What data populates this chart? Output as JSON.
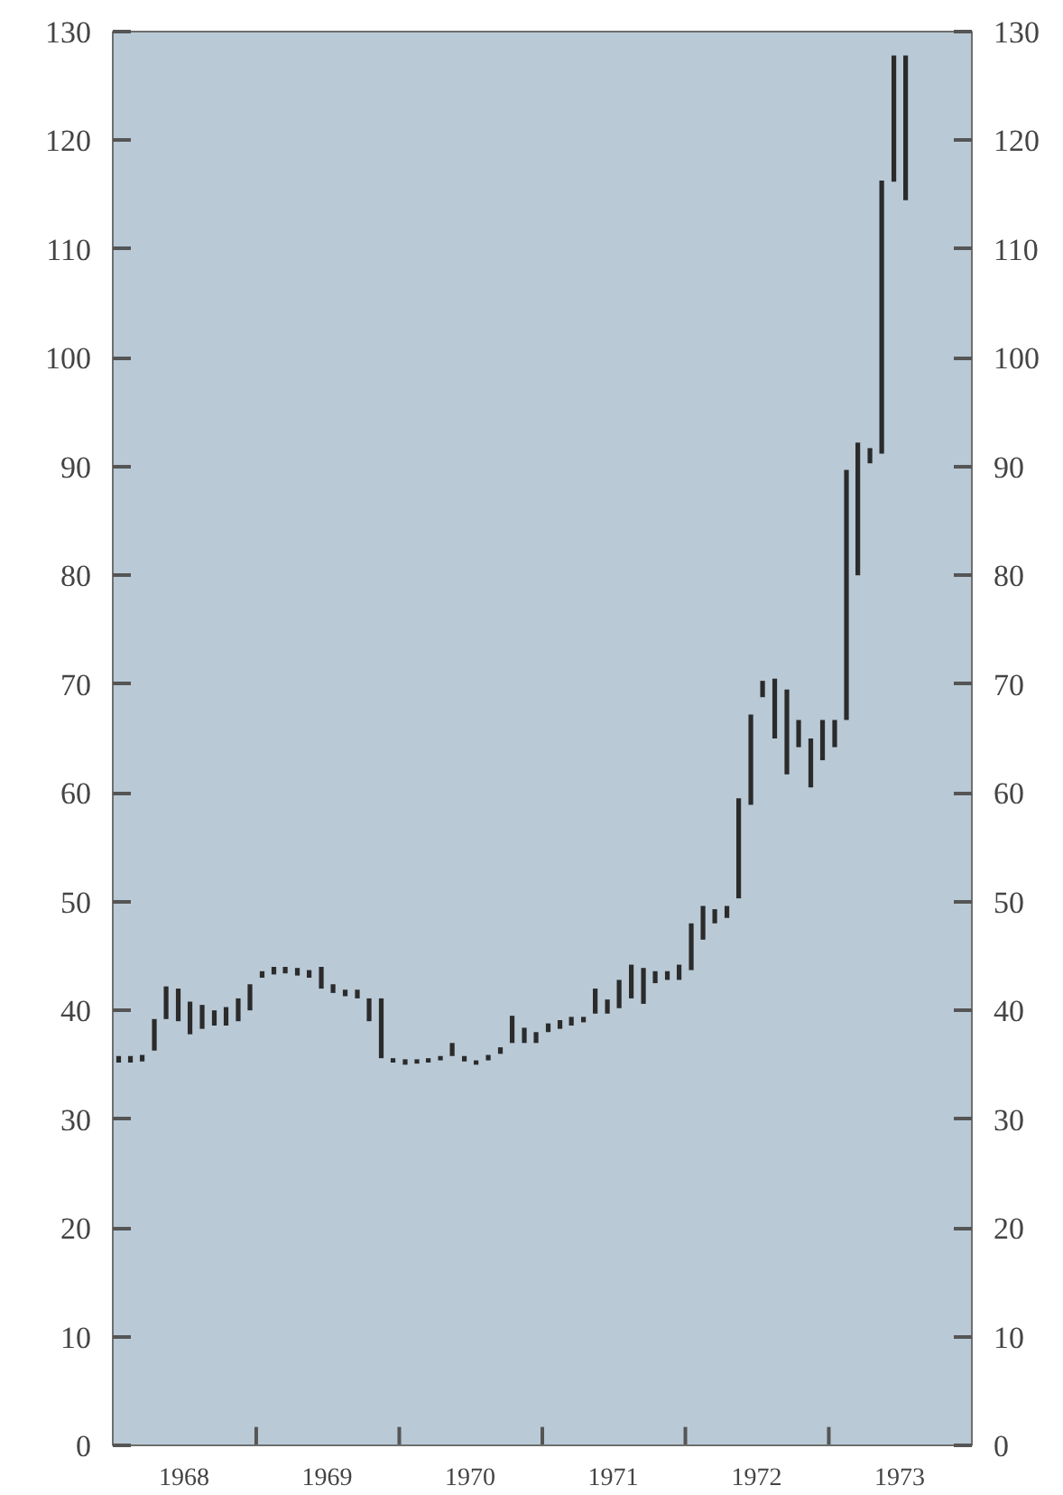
{
  "chart_data": {
    "type": "bar",
    "color": "#2b2b2b",
    "x": [
      "1968-01-16",
      "1968-02-15",
      "1968-03-16",
      "1968-04-16",
      "1968-05-16",
      "1968-06-16",
      "1968-07-16",
      "1968-08-16",
      "1968-09-16",
      "1968-10-16",
      "1968-11-16",
      "1968-12-16",
      "1969-01-16",
      "1969-02-15",
      "1969-03-16",
      "1969-04-16",
      "1969-05-16",
      "1969-06-16",
      "1969-07-16",
      "1969-08-16",
      "1969-09-16",
      "1969-10-16",
      "1969-11-16",
      "1969-12-16",
      "1970-01-16",
      "1970-02-15",
      "1970-03-16",
      "1970-04-16",
      "1970-05-16",
      "1970-06-16",
      "1970-07-16",
      "1970-08-16",
      "1970-09-16",
      "1970-10-16",
      "1970-11-16",
      "1970-12-16",
      "1971-01-16",
      "1971-02-15",
      "1971-03-16",
      "1971-04-16",
      "1971-05-16",
      "1971-06-16",
      "1971-07-16",
      "1971-08-16",
      "1971-09-16",
      "1971-10-16",
      "1971-11-16",
      "1971-12-16",
      "1972-01-16",
      "1972-02-15",
      "1972-03-16",
      "1972-04-16",
      "1972-05-16",
      "1972-06-16",
      "1972-07-16",
      "1972-08-16",
      "1972-09-16",
      "1972-10-16",
      "1972-11-16",
      "1972-12-16",
      "1973-01-16",
      "1973-02-15",
      "1973-03-16",
      "1973-04-16",
      "1973-05-16",
      "1973-06-16",
      "1973-07-16"
    ],
    "base": [
      35.2,
      35.2,
      35.3,
      36.3,
      39.2,
      39.0,
      37.8,
      38.3,
      38.6,
      38.6,
      39.0,
      40.0,
      43.0,
      43.3,
      43.4,
      43.2,
      43.0,
      42.0,
      41.6,
      41.3,
      41.1,
      39.0,
      35.6,
      35.2,
      35.0,
      35.1,
      35.2,
      35.4,
      35.8,
      35.3,
      35.0,
      35.4,
      36.0,
      37.0,
      37.0,
      37.0,
      38.0,
      38.3,
      38.6,
      38.9,
      39.7,
      39.7,
      40.2,
      41.1,
      40.6,
      42.5,
      42.8,
      42.8,
      43.7,
      46.5,
      48.0,
      48.5,
      50.3,
      58.9,
      68.8,
      65.0,
      61.7,
      64.2,
      60.5,
      63.0,
      64.2,
      66.7,
      80.0,
      90.3,
      91.2,
      116.2,
      114.5
    ],
    "values": [
      0.6,
      0.6,
      0.6,
      2.9,
      3.0,
      3.0,
      3.0,
      2.2,
      1.4,
      1.7,
      2.1,
      2.4,
      0.6,
      0.7,
      0.6,
      0.7,
      0.7,
      2.0,
      0.8,
      0.6,
      0.8,
      2.1,
      5.5,
      0.4,
      0.5,
      0.4,
      0.4,
      0.4,
      1.2,
      0.5,
      0.4,
      0.5,
      0.6,
      2.5,
      1.4,
      1.0,
      0.8,
      0.8,
      0.8,
      0.5,
      2.3,
      1.3,
      2.6,
      3.1,
      3.3,
      1.1,
      0.8,
      1.4,
      4.3,
      3.1,
      1.3,
      1.1,
      9.2,
      8.3,
      1.5,
      5.5,
      7.8,
      2.5,
      4.5,
      3.7,
      2.5,
      23.0,
      12.2,
      1.4,
      25.1,
      11.6,
      13.3
    ],
    "xlim": [
      "1968-01-01",
      "1974-01-01"
    ],
    "xticks": [
      {
        "value": "1968-07-01",
        "label": "1968"
      },
      {
        "value": "1969-07-01",
        "label": "1969"
      },
      {
        "value": "1970-07-01",
        "label": "1970"
      },
      {
        "value": "1971-07-01",
        "label": "1971"
      },
      {
        "value": "1972-07-01",
        "label": "1972"
      },
      {
        "value": "1973-07-01",
        "label": "1973"
      },
      {
        "value": "1969-01-01",
        "label": null
      },
      {
        "value": "1970-01-01",
        "label": null
      },
      {
        "value": "1971-01-01",
        "label": null
      },
      {
        "value": "1972-01-01",
        "label": null
      },
      {
        "value": "1973-01-01",
        "label": null
      }
    ],
    "ylim": [
      0,
      130
    ],
    "yticks": [
      0,
      10,
      20,
      30,
      40,
      50,
      60,
      70,
      80,
      90,
      100,
      110,
      120,
      130
    ],
    "y2lim": [
      0,
      130
    ],
    "y2ticks": [
      0,
      10,
      20,
      30,
      40,
      50,
      60,
      70,
      80,
      90,
      100,
      110,
      120,
      130
    ]
  }
}
